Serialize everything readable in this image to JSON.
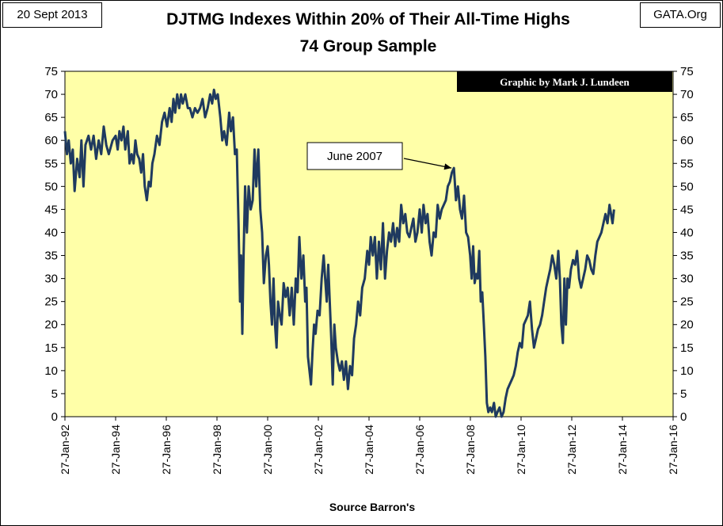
{
  "header": {
    "date": "20 Sept 2013",
    "source": "GATA.Org"
  },
  "chart_data": {
    "type": "line",
    "title": "DJTMG Indexes  Within 20% of Their All-Time Highs",
    "subtitle": "74 Group Sample",
    "xlabel": "Source Barron's",
    "ylabel": "",
    "credit": "Graphic by Mark J. Lundeen",
    "annotation": {
      "text": "June 2007",
      "x": 2007.45,
      "y": 54
    },
    "ylim": [
      0,
      75
    ],
    "yticks": [
      0,
      5,
      10,
      15,
      20,
      25,
      30,
      35,
      40,
      45,
      50,
      55,
      60,
      65,
      70,
      75
    ],
    "xlim": [
      1992.07,
      2016.07
    ],
    "xticks": [
      {
        "x": 1992.07,
        "label": "27-Jan-92"
      },
      {
        "x": 1994.07,
        "label": "27-Jan-94"
      },
      {
        "x": 1996.07,
        "label": "27-Jan-96"
      },
      {
        "x": 1998.07,
        "label": "27-Jan-98"
      },
      {
        "x": 2000.07,
        "label": "27-Jan-00"
      },
      {
        "x": 2002.07,
        "label": "27-Jan-02"
      },
      {
        "x": 2004.07,
        "label": "27-Jan-04"
      },
      {
        "x": 2006.07,
        "label": "27-Jan-06"
      },
      {
        "x": 2008.07,
        "label": "27-Jan-08"
      },
      {
        "x": 2010.07,
        "label": "27-Jan-10"
      },
      {
        "x": 2012.07,
        "label": "27-Jan-12"
      },
      {
        "x": 2014.07,
        "label": "27-Jan-14"
      },
      {
        "x": 2016.07,
        "label": "27-Jan-16"
      }
    ],
    "grid": false,
    "colors": {
      "plot_bg": "#FFFFA8",
      "line": "#1F3A5F",
      "credit_bg": "#000000"
    },
    "series": [
      {
        "values": [
          [
            1992.07,
            62
          ],
          [
            1992.15,
            57
          ],
          [
            1992.22,
            60
          ],
          [
            1992.3,
            55
          ],
          [
            1992.38,
            58
          ],
          [
            1992.45,
            49
          ],
          [
            1992.55,
            56
          ],
          [
            1992.65,
            52
          ],
          [
            1992.72,
            60
          ],
          [
            1992.8,
            50
          ],
          [
            1992.88,
            59
          ],
          [
            1993.0,
            61
          ],
          [
            1993.1,
            58
          ],
          [
            1993.2,
            61
          ],
          [
            1993.3,
            56
          ],
          [
            1993.4,
            60
          ],
          [
            1993.5,
            57
          ],
          [
            1993.6,
            63
          ],
          [
            1993.7,
            59
          ],
          [
            1993.8,
            57
          ],
          [
            1993.95,
            60
          ],
          [
            1994.07,
            61
          ],
          [
            1994.15,
            58
          ],
          [
            1994.22,
            62
          ],
          [
            1994.3,
            60
          ],
          [
            1994.38,
            63
          ],
          [
            1994.45,
            58
          ],
          [
            1994.55,
            62
          ],
          [
            1994.62,
            55
          ],
          [
            1994.7,
            57
          ],
          [
            1994.78,
            55
          ],
          [
            1994.85,
            60
          ],
          [
            1994.92,
            57
          ],
          [
            1995.0,
            56
          ],
          [
            1995.08,
            53
          ],
          [
            1995.15,
            57
          ],
          [
            1995.22,
            50
          ],
          [
            1995.3,
            47
          ],
          [
            1995.38,
            51
          ],
          [
            1995.45,
            50
          ],
          [
            1995.52,
            55
          ],
          [
            1995.6,
            57
          ],
          [
            1995.7,
            61
          ],
          [
            1995.8,
            59
          ],
          [
            1995.9,
            64
          ],
          [
            1996.0,
            66
          ],
          [
            1996.1,
            63
          ],
          [
            1996.2,
            67
          ],
          [
            1996.28,
            64
          ],
          [
            1996.35,
            69
          ],
          [
            1996.42,
            66
          ],
          [
            1996.5,
            70
          ],
          [
            1996.58,
            67
          ],
          [
            1996.65,
            70
          ],
          [
            1996.72,
            68
          ],
          [
            1996.82,
            70
          ],
          [
            1996.92,
            67
          ],
          [
            1997.0,
            67
          ],
          [
            1997.1,
            65
          ],
          [
            1997.2,
            67
          ],
          [
            1997.3,
            66
          ],
          [
            1997.4,
            67
          ],
          [
            1997.5,
            69
          ],
          [
            1997.6,
            65
          ],
          [
            1997.7,
            67
          ],
          [
            1997.8,
            70
          ],
          [
            1997.88,
            68
          ],
          [
            1997.95,
            71
          ],
          [
            1998.02,
            69
          ],
          [
            1998.1,
            70
          ],
          [
            1998.2,
            65
          ],
          [
            1998.28,
            60
          ],
          [
            1998.35,
            62
          ],
          [
            1998.45,
            59
          ],
          [
            1998.55,
            66
          ],
          [
            1998.62,
            62
          ],
          [
            1998.7,
            65
          ],
          [
            1998.78,
            57
          ],
          [
            1998.85,
            58
          ],
          [
            1998.92,
            42
          ],
          [
            1998.98,
            25
          ],
          [
            1999.02,
            35
          ],
          [
            1999.07,
            18
          ],
          [
            1999.12,
            35
          ],
          [
            1999.18,
            50
          ],
          [
            1999.25,
            40
          ],
          [
            1999.32,
            50
          ],
          [
            1999.4,
            45
          ],
          [
            1999.48,
            47
          ],
          [
            1999.55,
            58
          ],
          [
            1999.62,
            50
          ],
          [
            1999.7,
            58
          ],
          [
            1999.78,
            45
          ],
          [
            1999.85,
            40
          ],
          [
            1999.92,
            29
          ],
          [
            2000.0,
            35
          ],
          [
            2000.07,
            37
          ],
          [
            2000.12,
            33
          ],
          [
            2000.18,
            25
          ],
          [
            2000.24,
            20
          ],
          [
            2000.3,
            30
          ],
          [
            2000.36,
            20
          ],
          [
            2000.42,
            15
          ],
          [
            2000.48,
            25
          ],
          [
            2000.55,
            22
          ],
          [
            2000.62,
            20
          ],
          [
            2000.7,
            29
          ],
          [
            2000.78,
            26
          ],
          [
            2000.86,
            28
          ],
          [
            2000.94,
            22
          ],
          [
            2001.02,
            28
          ],
          [
            2001.1,
            20
          ],
          [
            2001.18,
            30
          ],
          [
            2001.25,
            27
          ],
          [
            2001.32,
            39
          ],
          [
            2001.4,
            30
          ],
          [
            2001.48,
            35
          ],
          [
            2001.55,
            25
          ],
          [
            2001.6,
            28
          ],
          [
            2001.66,
            13
          ],
          [
            2001.72,
            10
          ],
          [
            2001.78,
            7
          ],
          [
            2001.84,
            14
          ],
          [
            2001.9,
            20
          ],
          [
            2001.96,
            18
          ],
          [
            2002.04,
            23
          ],
          [
            2002.12,
            22
          ],
          [
            2002.2,
            30
          ],
          [
            2002.28,
            35
          ],
          [
            2002.34,
            30
          ],
          [
            2002.4,
            25
          ],
          [
            2002.46,
            33
          ],
          [
            2002.52,
            25
          ],
          [
            2002.58,
            17
          ],
          [
            2002.64,
            7
          ],
          [
            2002.7,
            20
          ],
          [
            2002.76,
            15
          ],
          [
            2002.84,
            12
          ],
          [
            2002.92,
            10
          ],
          [
            2003.0,
            12
          ],
          [
            2003.08,
            8
          ],
          [
            2003.16,
            12
          ],
          [
            2003.24,
            6
          ],
          [
            2003.32,
            11
          ],
          [
            2003.4,
            9
          ],
          [
            2003.48,
            17
          ],
          [
            2003.56,
            20
          ],
          [
            2003.64,
            25
          ],
          [
            2003.72,
            22
          ],
          [
            2003.8,
            28
          ],
          [
            2003.9,
            30
          ],
          [
            2004.0,
            36
          ],
          [
            2004.07,
            33
          ],
          [
            2004.14,
            39
          ],
          [
            2004.22,
            35
          ],
          [
            2004.3,
            39
          ],
          [
            2004.38,
            30
          ],
          [
            2004.46,
            38
          ],
          [
            2004.54,
            32
          ],
          [
            2004.62,
            42
          ],
          [
            2004.7,
            30
          ],
          [
            2004.78,
            36
          ],
          [
            2004.86,
            40
          ],
          [
            2004.94,
            38
          ],
          [
            2005.02,
            42
          ],
          [
            2005.1,
            37
          ],
          [
            2005.18,
            41
          ],
          [
            2005.26,
            38
          ],
          [
            2005.34,
            46
          ],
          [
            2005.42,
            42
          ],
          [
            2005.5,
            44
          ],
          [
            2005.58,
            40
          ],
          [
            2005.66,
            39
          ],
          [
            2005.74,
            41
          ],
          [
            2005.82,
            43
          ],
          [
            2005.9,
            38
          ],
          [
            2005.98,
            40
          ],
          [
            2006.07,
            45
          ],
          [
            2006.15,
            40
          ],
          [
            2006.22,
            46
          ],
          [
            2006.3,
            42
          ],
          [
            2006.38,
            44
          ],
          [
            2006.46,
            38
          ],
          [
            2006.54,
            35
          ],
          [
            2006.62,
            40
          ],
          [
            2006.7,
            39
          ],
          [
            2006.78,
            46
          ],
          [
            2006.86,
            43
          ],
          [
            2006.94,
            45
          ],
          [
            2007.02,
            46
          ],
          [
            2007.1,
            47
          ],
          [
            2007.18,
            50
          ],
          [
            2007.26,
            51
          ],
          [
            2007.34,
            53
          ],
          [
            2007.42,
            54
          ],
          [
            2007.5,
            47
          ],
          [
            2007.58,
            50
          ],
          [
            2007.66,
            45
          ],
          [
            2007.74,
            43
          ],
          [
            2007.82,
            48
          ],
          [
            2007.9,
            40
          ],
          [
            2007.98,
            39
          ],
          [
            2008.06,
            35
          ],
          [
            2008.12,
            30
          ],
          [
            2008.18,
            37
          ],
          [
            2008.24,
            29
          ],
          [
            2008.3,
            31
          ],
          [
            2008.36,
            30
          ],
          [
            2008.42,
            36
          ],
          [
            2008.48,
            25
          ],
          [
            2008.54,
            27
          ],
          [
            2008.6,
            20
          ],
          [
            2008.66,
            13
          ],
          [
            2008.72,
            3
          ],
          [
            2008.78,
            1
          ],
          [
            2008.85,
            2
          ],
          [
            2008.92,
            1
          ],
          [
            2009.0,
            3
          ],
          [
            2009.07,
            0
          ],
          [
            2009.14,
            1
          ],
          [
            2009.22,
            2
          ],
          [
            2009.3,
            0
          ],
          [
            2009.38,
            1
          ],
          [
            2009.46,
            4
          ],
          [
            2009.54,
            6
          ],
          [
            2009.62,
            7
          ],
          [
            2009.7,
            8
          ],
          [
            2009.78,
            9
          ],
          [
            2009.86,
            11
          ],
          [
            2009.94,
            14
          ],
          [
            2010.02,
            16
          ],
          [
            2010.1,
            15
          ],
          [
            2010.18,
            20
          ],
          [
            2010.26,
            21
          ],
          [
            2010.34,
            22
          ],
          [
            2010.42,
            25
          ],
          [
            2010.5,
            19
          ],
          [
            2010.58,
            15
          ],
          [
            2010.66,
            17
          ],
          [
            2010.74,
            19
          ],
          [
            2010.82,
            20
          ],
          [
            2010.9,
            22
          ],
          [
            2010.98,
            25
          ],
          [
            2011.06,
            28
          ],
          [
            2011.14,
            30
          ],
          [
            2011.22,
            32
          ],
          [
            2011.3,
            35
          ],
          [
            2011.38,
            33
          ],
          [
            2011.46,
            30
          ],
          [
            2011.54,
            36
          ],
          [
            2011.6,
            30
          ],
          [
            2011.66,
            20
          ],
          [
            2011.72,
            16
          ],
          [
            2011.78,
            30
          ],
          [
            2011.84,
            20
          ],
          [
            2011.9,
            30
          ],
          [
            2011.96,
            28
          ],
          [
            2012.04,
            32
          ],
          [
            2012.12,
            34
          ],
          [
            2012.2,
            33
          ],
          [
            2012.28,
            36
          ],
          [
            2012.36,
            30
          ],
          [
            2012.44,
            28
          ],
          [
            2012.52,
            30
          ],
          [
            2012.6,
            32
          ],
          [
            2012.68,
            35
          ],
          [
            2012.76,
            34
          ],
          [
            2012.84,
            32
          ],
          [
            2012.92,
            31
          ],
          [
            2013.0,
            35
          ],
          [
            2013.08,
            38
          ],
          [
            2013.16,
            39
          ],
          [
            2013.24,
            40
          ],
          [
            2013.32,
            42
          ],
          [
            2013.4,
            44
          ],
          [
            2013.48,
            42
          ],
          [
            2013.56,
            46
          ],
          [
            2013.62,
            44
          ],
          [
            2013.68,
            42
          ],
          [
            2013.74,
            45
          ]
        ]
      }
    ]
  }
}
